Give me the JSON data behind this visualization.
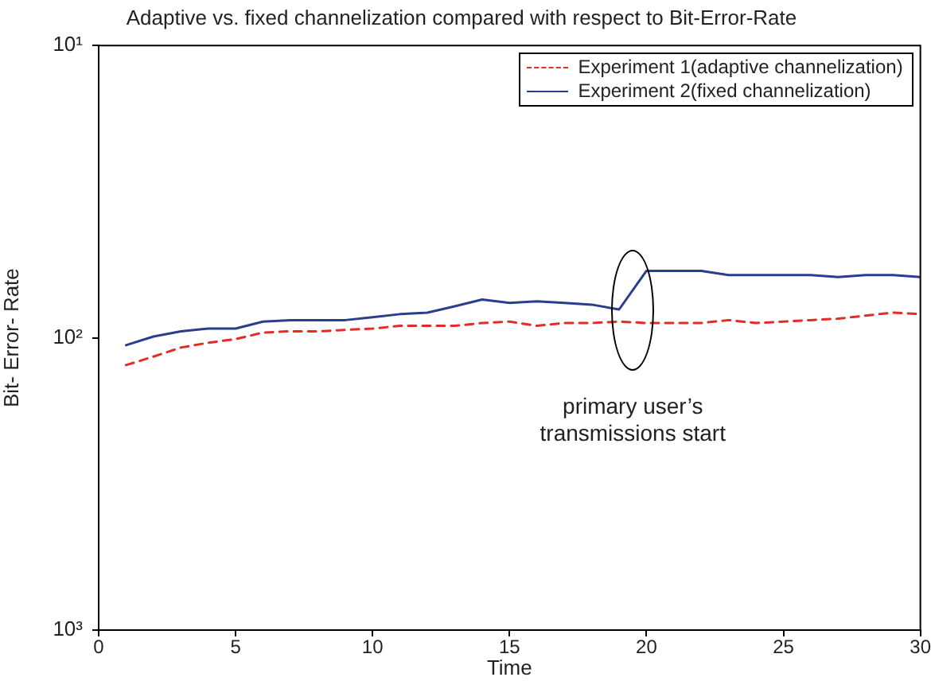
{
  "chart_data": {
    "type": "line",
    "title": "Adaptive vs. fixed channelization compared with respect to Bit-Error-Rate",
    "xlabel": "Time",
    "ylabel": "Bit- Error- Rate",
    "x": [
      1,
      2,
      3,
      4,
      5,
      6,
      7,
      8,
      9,
      10,
      11,
      12,
      13,
      14,
      15,
      16,
      17,
      18,
      19,
      20,
      21,
      22,
      23,
      24,
      25,
      26,
      27,
      28,
      29,
      30
    ],
    "series": [
      {
        "name": "Experiment 1(adaptive channelization)",
        "color": "#e52a2a",
        "line_style": "dashed",
        "values": [
          124,
          116,
          108,
          104,
          101,
          96,
          95,
          95,
          94,
          93,
          91,
          91,
          91,
          89,
          88,
          91,
          89,
          89,
          88,
          89,
          89,
          89,
          87,
          89,
          88,
          87,
          86,
          84,
          82,
          83
        ]
      },
      {
        "name": "Experiment 2(fixed channelization)",
        "color": "#2b3d8c",
        "line_style": "solid",
        "values": [
          106,
          99,
          95,
          93,
          93,
          88,
          87,
          87,
          87,
          85,
          83,
          82,
          78,
          74,
          76,
          75,
          76,
          77,
          80,
          59,
          59,
          59,
          61,
          61,
          61,
          61,
          62,
          61,
          61,
          62
        ]
      }
    ],
    "log": "y",
    "xlim": [
      0,
      30
    ],
    "xticks": [
      0,
      5,
      10,
      15,
      20,
      25,
      30
    ],
    "ylim": [
      1000,
      10
    ],
    "yticks": [
      {
        "value": 10,
        "label": "10¹"
      },
      {
        "value": 100,
        "label": "10²"
      },
      {
        "value": 1000,
        "label": "10³"
      }
    ],
    "grid": false,
    "legend": "top right",
    "marker": "none",
    "annotations": [
      "primary user’s\ntransmissions start"
    ]
  }
}
